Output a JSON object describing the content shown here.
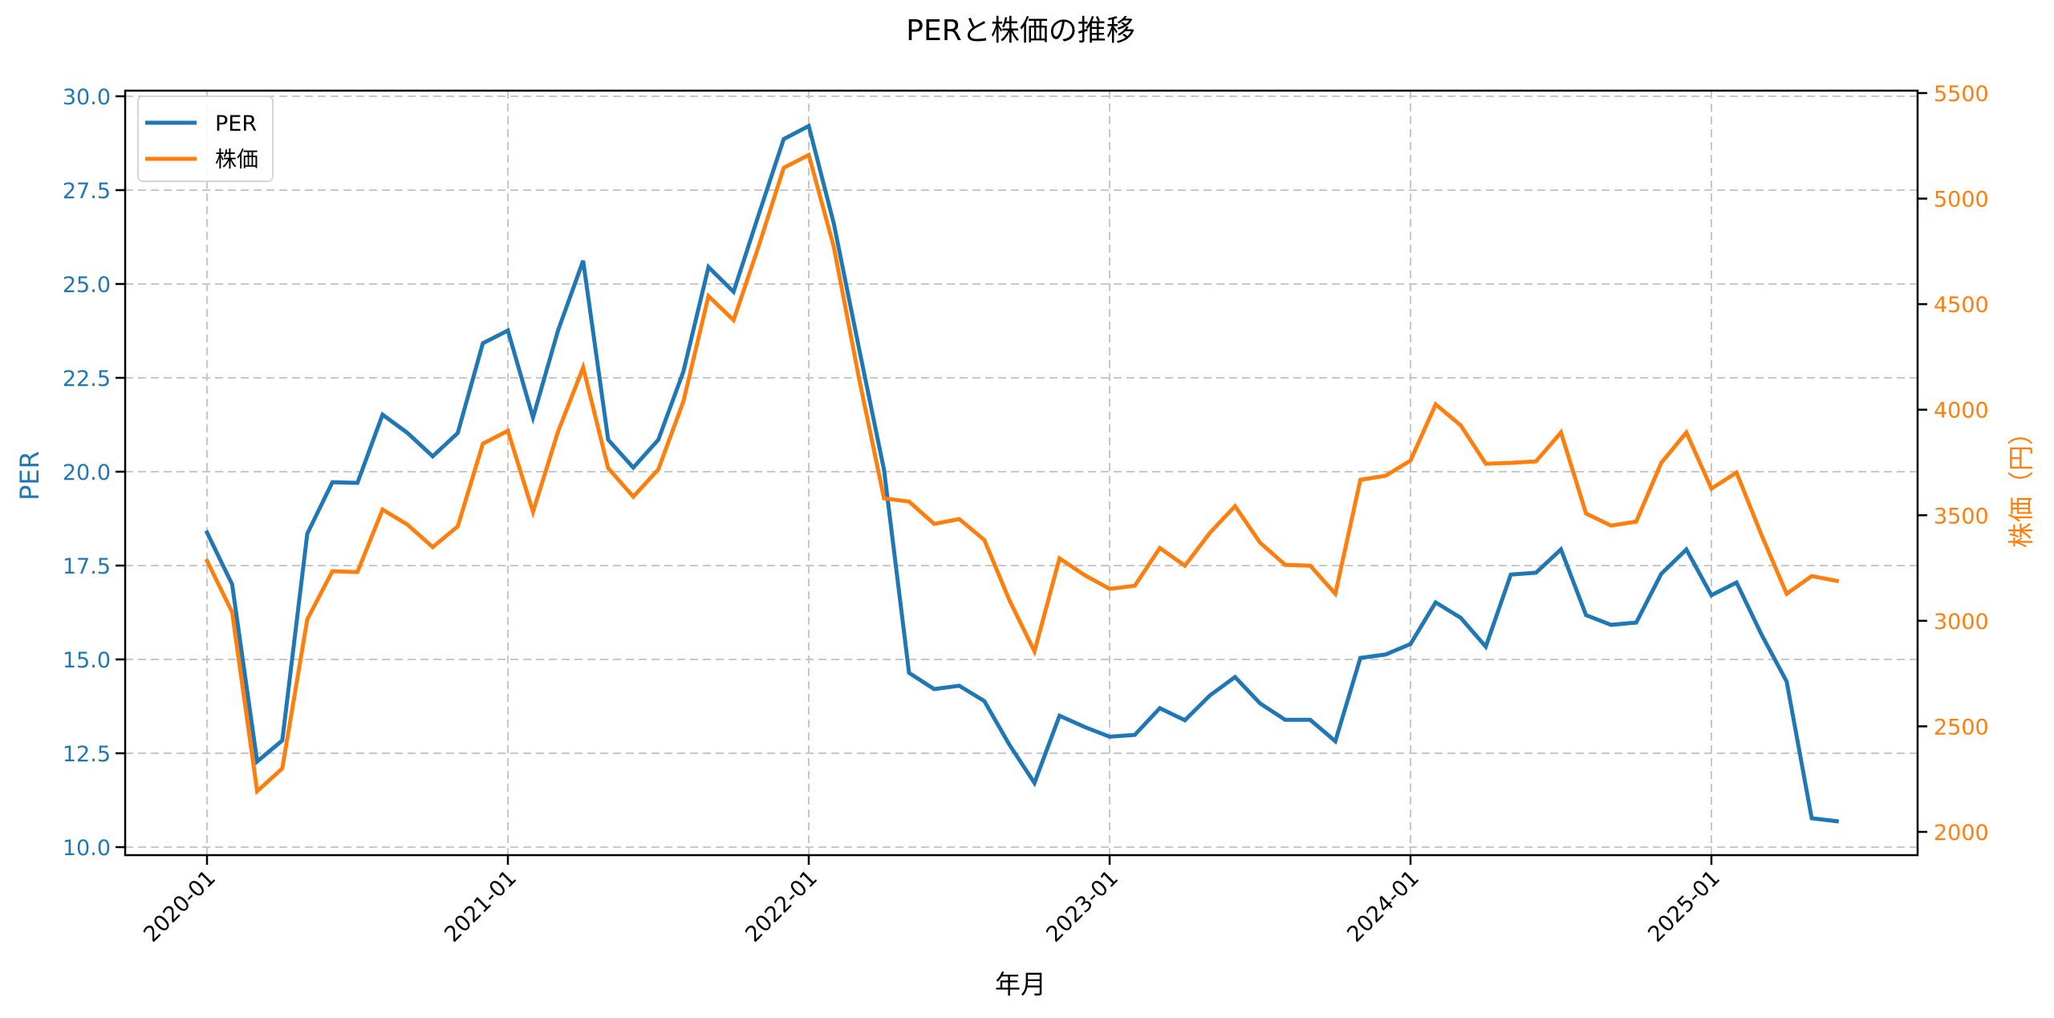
{
  "chart_data": {
    "type": "line",
    "title": "PERと株価の推移",
    "xlabel": "年月",
    "ylabel_left": "PER",
    "ylabel_right": "株価（円）",
    "x_tick_labels": [
      "2020-01",
      "2021-01",
      "2022-01",
      "2023-01",
      "2024-01",
      "2025-01"
    ],
    "y_left_ticks": [
      "10.0",
      "12.5",
      "15.0",
      "17.5",
      "20.0",
      "22.5",
      "25.0",
      "27.5",
      "30.0"
    ],
    "y_right_ticks": [
      "2000",
      "2500",
      "3000",
      "3500",
      "4000",
      "4500",
      "5000",
      "5500"
    ],
    "ylim_left": [
      9.8,
      30.15
    ],
    "ylim_right": [
      1890,
      5520
    ],
    "grid": true,
    "legend_position": "upper left",
    "x": [
      "2020-01",
      "2020-02",
      "2020-03",
      "2020-04",
      "2020-05",
      "2020-06",
      "2020-07",
      "2020-08",
      "2020-09",
      "2020-10",
      "2020-11",
      "2020-12",
      "2021-01",
      "2021-02",
      "2021-03",
      "2021-04",
      "2021-05",
      "2021-06",
      "2021-07",
      "2021-08",
      "2021-09",
      "2021-10",
      "2021-11",
      "2021-12",
      "2022-01",
      "2022-02",
      "2022-03",
      "2022-04",
      "2022-05",
      "2022-06",
      "2022-07",
      "2022-08",
      "2022-09",
      "2022-10",
      "2022-11",
      "2022-12",
      "2023-01",
      "2023-02",
      "2023-03",
      "2023-04",
      "2023-05",
      "2023-06",
      "2023-07",
      "2023-08",
      "2023-09",
      "2023-10",
      "2023-11",
      "2023-12",
      "2024-01",
      "2024-02",
      "2024-03",
      "2024-04",
      "2024-05",
      "2024-06",
      "2024-07",
      "2024-08",
      "2024-09",
      "2024-10",
      "2024-11",
      "2024-12",
      "2025-01",
      "2025-02",
      "2025-03",
      "2025-04",
      "2025-05",
      "2025-06"
    ],
    "series": [
      {
        "name": "PER",
        "axis": "left",
        "color": "#1f77b4",
        "values": [
          18.38,
          17.0,
          12.28,
          12.84,
          18.35,
          19.72,
          19.7,
          21.52,
          21.03,
          20.41,
          21.03,
          23.42,
          23.76,
          21.44,
          23.76,
          25.62,
          20.85,
          20.11,
          20.85,
          22.67,
          25.45,
          24.79,
          26.84,
          28.86,
          29.21,
          26.6,
          23.3,
          20.05,
          14.64,
          14.21,
          14.3,
          13.89,
          12.73,
          11.71,
          13.5,
          13.2,
          12.94,
          12.99,
          13.7,
          13.38,
          14.04,
          14.53,
          13.83,
          13.39,
          13.39,
          12.82,
          15.04,
          15.13,
          15.41,
          16.52,
          16.11,
          15.34,
          17.26,
          17.31,
          17.93,
          16.18,
          15.92,
          15.98,
          17.28,
          17.93,
          16.71,
          17.05,
          15.66,
          14.41,
          10.77,
          10.69
        ]
      },
      {
        "name": "株価",
        "axis": "right",
        "color": "#ff7f0e",
        "values": [
          3284,
          3041,
          2193,
          2300,
          3007,
          3235,
          3231,
          3527,
          3455,
          3349,
          3447,
          3839,
          3900,
          3516,
          3896,
          4200,
          3723,
          3588,
          3717,
          4040,
          4538,
          4424,
          4774,
          5146,
          5207,
          4770,
          4150,
          3580,
          3565,
          3459,
          3482,
          3383,
          3098,
          2855,
          3296,
          3216,
          3151,
          3166,
          3345,
          3261,
          3417,
          3543,
          3370,
          3265,
          3261,
          3128,
          3668,
          3687,
          3759,
          4025,
          3926,
          3744,
          3748,
          3755,
          3892,
          3508,
          3451,
          3470,
          3748,
          3892,
          3626,
          3702,
          3406,
          3128,
          3212,
          3189
        ]
      }
    ]
  },
  "legend": {
    "items": [
      {
        "label": "PER",
        "color": "#1f77b4"
      },
      {
        "label": "株価",
        "color": "#ff7f0e"
      }
    ]
  },
  "colors": {
    "per": "#1f77b4",
    "price": "#ff7f0e",
    "grid": "#c8c8c8",
    "axis": "#000000"
  }
}
